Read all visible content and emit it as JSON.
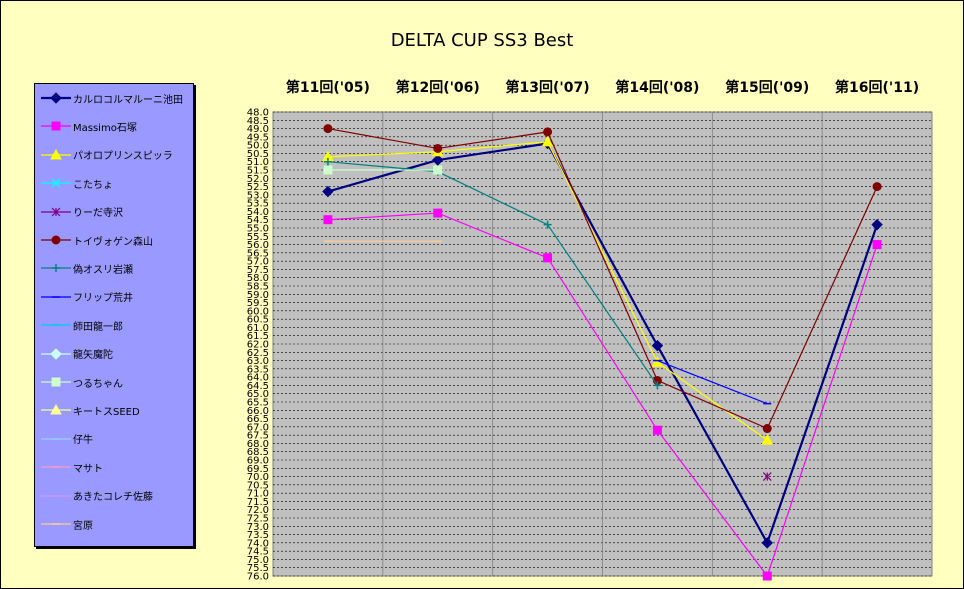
{
  "chart_data": {
    "type": "line",
    "title": "DELTA  CUP SS3 Best",
    "categories": [
      "第11回('05)",
      "第12回('06)",
      "第13回('07)",
      "第14回('08)",
      "第15回('09)",
      "第16回('11)"
    ],
    "ylim": [
      48.0,
      76.0
    ],
    "y_step": 0.5,
    "y_inverted": true,
    "grid": true,
    "legend_position": "left",
    "series": [
      {
        "name": "カルロコルマルーニ池田",
        "color": "#000080",
        "marker": "diamond",
        "values": [
          52.8,
          50.9,
          49.9,
          62.1,
          74.0,
          54.8
        ]
      },
      {
        "name": "Massimo石塚",
        "color": "#ff00ff",
        "marker": "square",
        "values": [
          54.5,
          54.1,
          56.8,
          67.2,
          76.0,
          56.0
        ]
      },
      {
        "name": "パオロプリンスピッラ",
        "color": "#ffff00",
        "marker": "triangle",
        "values": [
          50.7,
          50.4,
          49.8,
          63.1,
          67.8,
          null
        ]
      },
      {
        "name": "こたちょ",
        "color": "#00ffff",
        "marker": "x",
        "values": [
          null,
          null,
          null,
          null,
          null,
          null
        ]
      },
      {
        "name": "りーだ寺沢",
        "color": "#800080",
        "marker": "star",
        "values": [
          null,
          null,
          null,
          null,
          70.0,
          null
        ]
      },
      {
        "name": "トイヴォゲン森山",
        "color": "#800000",
        "marker": "circle",
        "values": [
          49.0,
          50.2,
          49.2,
          64.2,
          67.1,
          52.5
        ]
      },
      {
        "name": "偽オスリ岩瀬",
        "color": "#008080",
        "marker": "plus",
        "values": [
          51.0,
          51.6,
          54.8,
          64.5,
          null,
          null
        ]
      },
      {
        "name": "フリップ荒井",
        "color": "#0000ff",
        "marker": "dash",
        "values": [
          null,
          null,
          null,
          63.0,
          65.6,
          null
        ]
      },
      {
        "name": "師田龍一郎",
        "color": "#00ccff",
        "marker": "dash",
        "values": [
          null,
          null,
          null,
          null,
          null,
          null
        ]
      },
      {
        "name": "龍矢魔陀",
        "color": "#ccffff",
        "marker": "diamond",
        "values": [
          null,
          null,
          null,
          null,
          null,
          null
        ]
      },
      {
        "name": "つるちゃん",
        "color": "#ccffcc",
        "marker": "square",
        "values": [
          51.5,
          51.5,
          null,
          null,
          null,
          null
        ]
      },
      {
        "name": "キートスSEED",
        "color": "#ffff99",
        "marker": "triangle",
        "values": [
          null,
          null,
          null,
          null,
          null,
          null
        ]
      },
      {
        "name": "仔牛",
        "color": "#99ccff",
        "marker": "dash",
        "values": [
          null,
          null,
          null,
          null,
          null,
          null
        ]
      },
      {
        "name": "マサト",
        "color": "#ff99cc",
        "marker": "dash",
        "values": [
          null,
          null,
          null,
          null,
          null,
          null
        ]
      },
      {
        "name": "あきたコレチ佐藤",
        "color": "#cc99ff",
        "marker": "dash",
        "values": [
          null,
          null,
          null,
          null,
          null,
          null
        ]
      },
      {
        "name": "宮原",
        "color": "#ffcc99",
        "marker": "dash",
        "values": [
          55.8,
          55.8,
          null,
          null,
          null,
          null
        ]
      }
    ]
  }
}
